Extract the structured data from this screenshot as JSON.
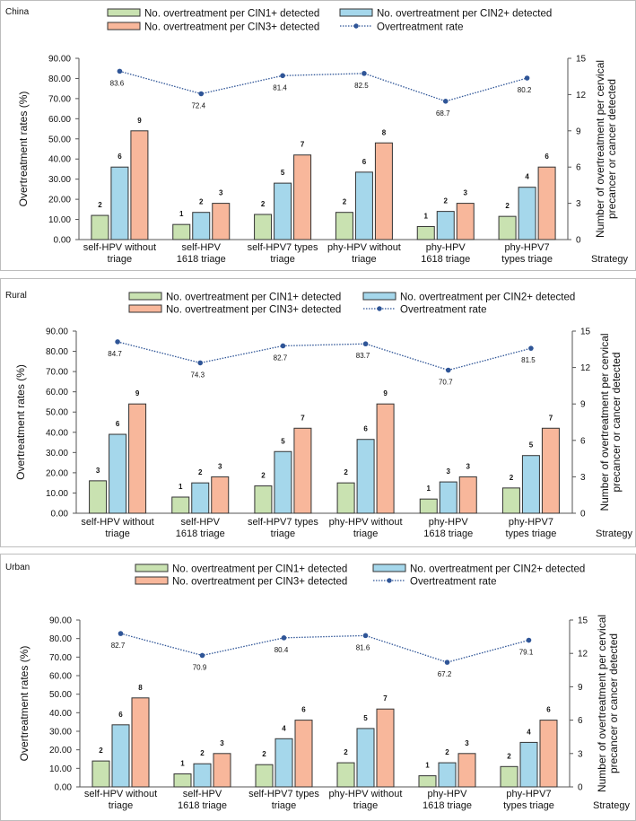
{
  "colors": {
    "cin1": "#c9e2b1",
    "cin2": "#a5d7eb",
    "cin3": "#f8b79b",
    "line": "#2f5597"
  },
  "chart_data": [
    {
      "type": "bar+line",
      "title": "China",
      "categories": [
        "self-HPV without|triage",
        "self-HPV|1618 triage",
        "self-HPV7 types|triage",
        "phy-HPV without|triage",
        "phy-HPV|1618 triage",
        "phy-HPV7|types triage"
      ],
      "xlabel": "Strategy",
      "ylabel": "Overtreatment rates (%)",
      "y2label": "Number of overtreatment per cervical|precancer or cancer detected",
      "ylim": [
        0,
        90
      ],
      "yticks": [
        "0.00",
        "10.00",
        "20.00",
        "30.00",
        "40.00",
        "50.00",
        "60.00",
        "70.00",
        "80.00",
        "90.00"
      ],
      "y2lim": [
        0,
        15
      ],
      "y2ticks": [
        "0",
        "3",
        "6",
        "9",
        "12",
        "15"
      ],
      "legend": [
        "No. overtreatment per CIN1+ detected",
        "No. overtreatment per CIN2+ detected",
        "No. overtreatment per CIN3+ detected",
        "Overtreatment rate"
      ],
      "series": [
        {
          "name": "No. overtreatment per CIN1+ detected",
          "axis": "right",
          "values": [
            2.0,
            1.25,
            2.08,
            2.25,
            1.08,
            1.92
          ],
          "labels": [
            "2",
            "1",
            "2",
            "2",
            "1",
            "2"
          ]
        },
        {
          "name": "No. overtreatment per CIN2+ detected",
          "axis": "right",
          "values": [
            6.0,
            2.25,
            4.67,
            5.58,
            2.33,
            4.33
          ],
          "labels": [
            "6",
            "2",
            "5",
            "6",
            "2",
            "4"
          ]
        },
        {
          "name": "No. overtreatment per CIN3+ detected",
          "axis": "right",
          "values": [
            9.0,
            3.0,
            7.0,
            8.0,
            3.0,
            6.0
          ],
          "labels": [
            "9",
            "3",
            "7",
            "8",
            "3",
            "6"
          ]
        },
        {
          "name": "Overtreatment rate",
          "axis": "left",
          "values": [
            83.6,
            72.4,
            81.4,
            82.5,
            68.7,
            80.2
          ],
          "labels": [
            "83.6",
            "72.4",
            "81.4",
            "82.5",
            "68.7",
            "80.2"
          ]
        }
      ]
    },
    {
      "type": "bar+line",
      "title": "Rural",
      "categories": [
        "self-HPV without|triage",
        "self-HPV|1618 triage",
        "self-HPV7 types|triage",
        "phy-HPV without|triage",
        "phy-HPV|1618 triage",
        "phy-HPV7|types triage"
      ],
      "xlabel": "Strategy",
      "ylabel": "Overtreatment rates (%)",
      "y2label": "Number of overtreatment per cervical|precancer or cancer detected",
      "ylim": [
        0,
        90
      ],
      "yticks": [
        "0.00",
        "10.00",
        "20.00",
        "30.00",
        "40.00",
        "50.00",
        "60.00",
        "70.00",
        "80.00",
        "90.00"
      ],
      "y2lim": [
        0,
        15
      ],
      "y2ticks": [
        "0",
        "3",
        "6",
        "9",
        "12",
        "15"
      ],
      "legend": [
        "No. overtreatment per CIN1+ detected",
        "No. overtreatment per CIN2+ detected",
        "No. overtreatment per CIN3+ detected",
        "Overtreatment rate"
      ],
      "series": [
        {
          "name": "No. overtreatment per CIN1+ detected",
          "axis": "right",
          "values": [
            2.67,
            1.33,
            2.25,
            2.5,
            1.17,
            2.08
          ],
          "labels": [
            "3",
            "1",
            "2",
            "2",
            "1",
            "2"
          ]
        },
        {
          "name": "No. overtreatment per CIN2+ detected",
          "axis": "right",
          "values": [
            6.5,
            2.5,
            5.08,
            6.08,
            2.58,
            4.75
          ],
          "labels": [
            "6",
            "2",
            "5",
            "6",
            "3",
            "5"
          ]
        },
        {
          "name": "No. overtreatment per CIN3+ detected",
          "axis": "right",
          "values": [
            9.0,
            3.0,
            7.0,
            9.0,
            3.0,
            7.0
          ],
          "labels": [
            "9",
            "3",
            "7",
            "9",
            "3",
            "7"
          ]
        },
        {
          "name": "Overtreatment rate",
          "axis": "left",
          "values": [
            84.7,
            74.3,
            82.7,
            83.7,
            70.7,
            81.5
          ],
          "labels": [
            "84.7",
            "74.3",
            "82.7",
            "83.7",
            "70.7",
            "81.5"
          ]
        }
      ]
    },
    {
      "type": "bar+line",
      "title": "Urban",
      "categories": [
        "self-HPV without|triage",
        "self-HPV|1618 triage",
        "self-HPV7 types|triage",
        "phy-HPV without|triage",
        "phy-HPV|1618 triage",
        "phy-HPV7|types triage"
      ],
      "xlabel": "Strategy",
      "ylabel": "Overtreatment rates (%)",
      "y2label": "Number of overtreatment per cervical|precancer or cancer detected",
      "ylim": [
        0,
        90
      ],
      "yticks": [
        "0.00",
        "10.00",
        "20.00",
        "30.00",
        "40.00",
        "50.00",
        "60.00",
        "70.00",
        "80.00",
        "90.00"
      ],
      "y2lim": [
        0,
        15
      ],
      "y2ticks": [
        "0",
        "3",
        "6",
        "9",
        "12",
        "15"
      ],
      "legend": [
        "No. overtreatment per CIN1+ detected",
        "No. overtreatment per CIN2+ detected",
        "No. overtreatment per CIN3+ detected",
        "Overtreatment rate"
      ],
      "series": [
        {
          "name": "No. overtreatment per CIN1+ detected",
          "axis": "right",
          "values": [
            2.33,
            1.17,
            2.0,
            2.17,
            1.0,
            1.83
          ],
          "labels": [
            "2",
            "1",
            "2",
            "2",
            "1",
            "2"
          ]
        },
        {
          "name": "No. overtreatment per CIN2+ detected",
          "axis": "right",
          "values": [
            5.58,
            2.08,
            4.33,
            5.25,
            2.17,
            4.0
          ],
          "labels": [
            "6",
            "2",
            "4",
            "5",
            "2",
            "4"
          ]
        },
        {
          "name": "No. overtreatment per CIN3+ detected",
          "axis": "right",
          "values": [
            8.0,
            3.0,
            6.0,
            7.0,
            3.0,
            6.0
          ],
          "labels": [
            "8",
            "3",
            "6",
            "7",
            "3",
            "6"
          ]
        },
        {
          "name": "Overtreatment rate",
          "axis": "left",
          "values": [
            82.7,
            70.9,
            80.4,
            81.6,
            67.2,
            79.1
          ],
          "labels": [
            "82.7",
            "70.9",
            "80.4",
            "81.6",
            "67.2",
            "79.1"
          ]
        }
      ]
    }
  ]
}
